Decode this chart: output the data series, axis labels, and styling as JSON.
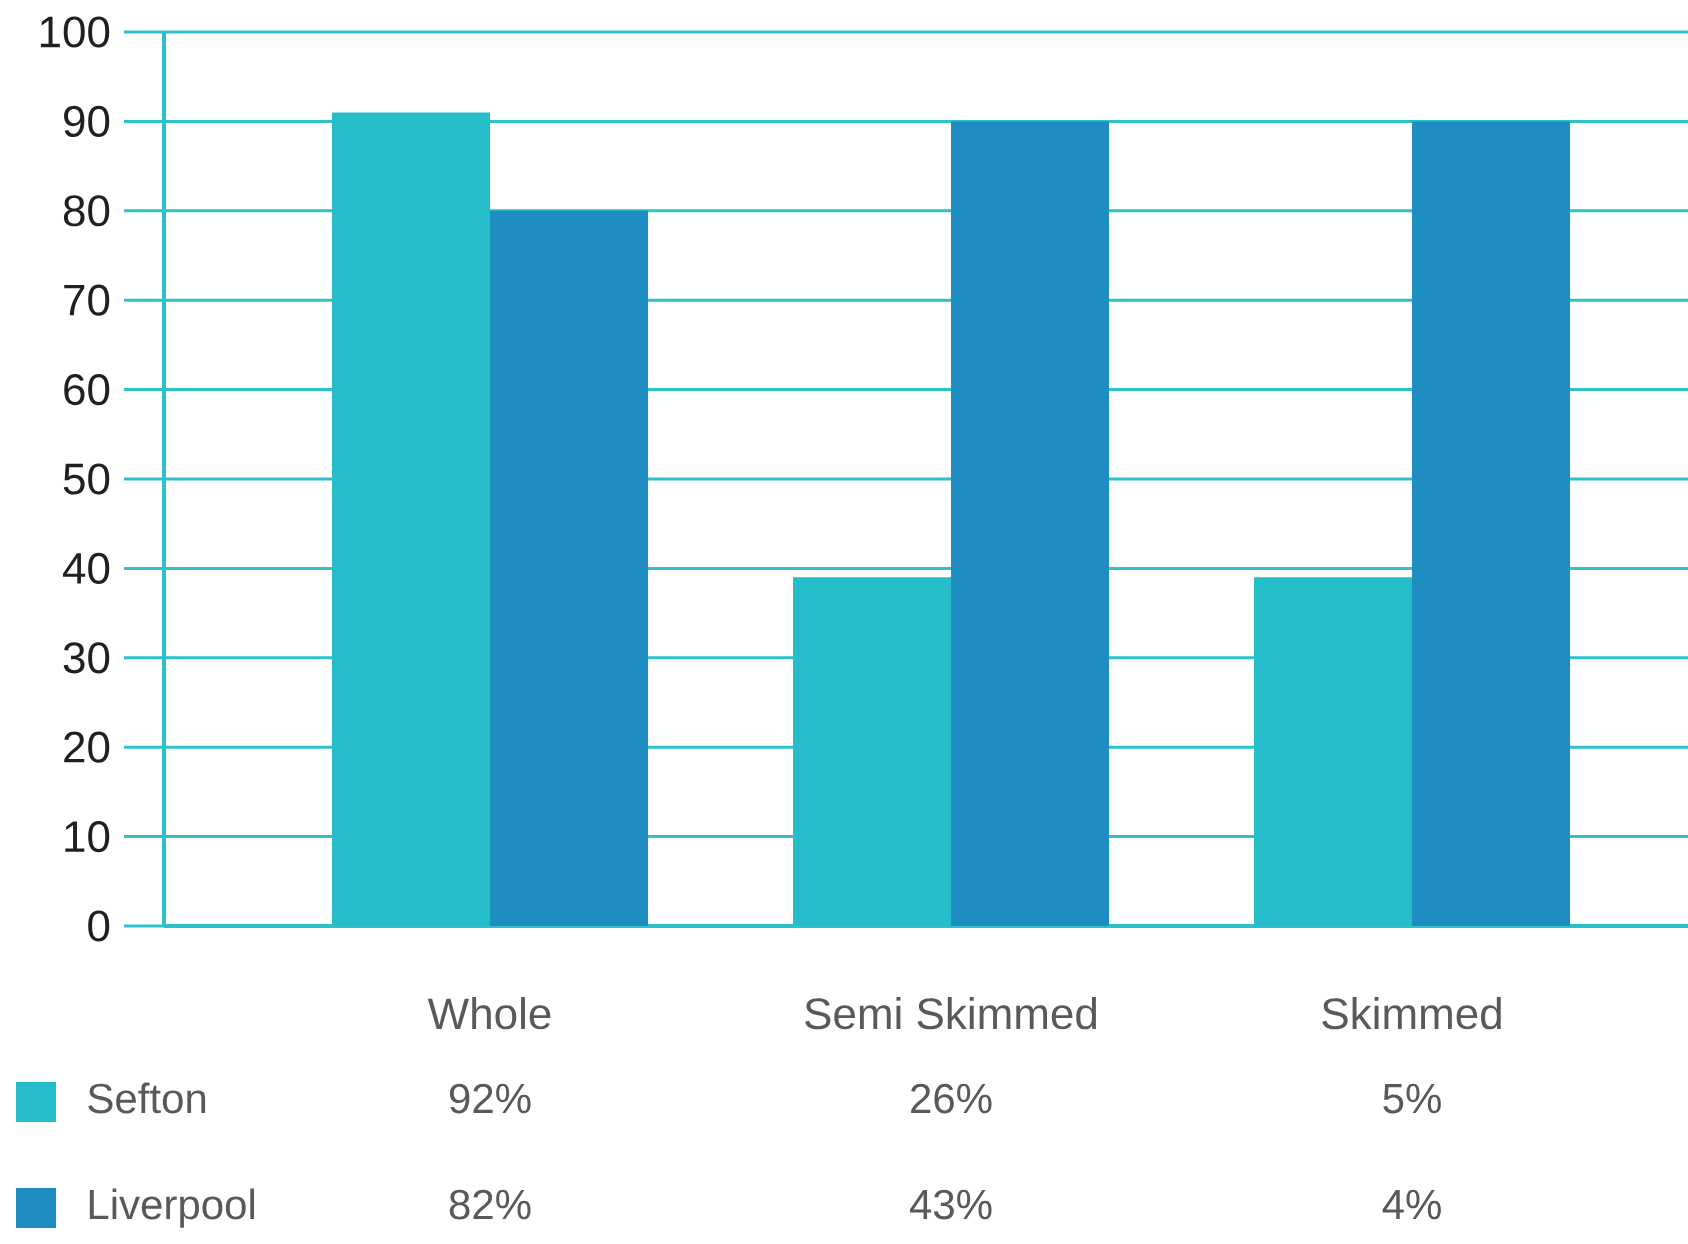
{
  "chart_data": {
    "type": "bar",
    "categories": [
      "Whole",
      "Semi Skimmed",
      "Skimmed"
    ],
    "series": [
      {
        "name": "Sefton",
        "color": "#24bdc9",
        "values": [
          91,
          39,
          39
        ]
      },
      {
        "name": "Liverpool",
        "color": "#1e8ec2",
        "values": [
          80,
          90,
          90
        ]
      }
    ],
    "ylim": [
      0,
      100
    ],
    "yticks": [
      0,
      10,
      20,
      30,
      40,
      50,
      60,
      70,
      80,
      90,
      100
    ],
    "annotations": [
      "92%",
      "26%",
      "5%",
      "82%",
      "43%",
      "4%"
    ],
    "grid": "y",
    "legend": "bottom"
  }
}
